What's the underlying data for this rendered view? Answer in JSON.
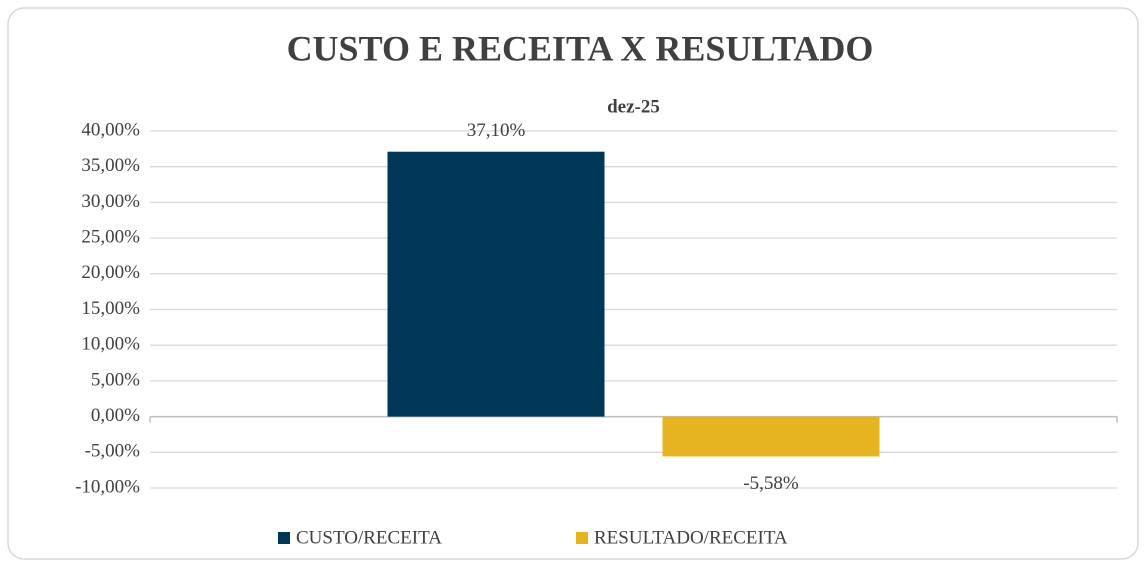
{
  "chart_data": {
    "type": "bar",
    "title": "CUSTO E RECEITA X RESULTADO",
    "categories": [
      "dez-25"
    ],
    "series": [
      {
        "name": "CUSTO/RECEITA",
        "color": "#003658",
        "values": [
          37.1
        ],
        "value_labels": [
          "37,10%"
        ]
      },
      {
        "name": "RESULTADO/RECEITA",
        "color": "#e6b420",
        "values": [
          -5.58
        ],
        "value_labels": [
          "-5,58%"
        ]
      }
    ],
    "ylim": [
      -10,
      40
    ],
    "yticks": [
      {
        "value": -10,
        "label": "-10,00%"
      },
      {
        "value": -5,
        "label": "-5,00%"
      },
      {
        "value": 0,
        "label": "0,00%"
      },
      {
        "value": 5,
        "label": "5,00%"
      },
      {
        "value": 10,
        "label": "10,00%"
      },
      {
        "value": 15,
        "label": "15,00%"
      },
      {
        "value": 20,
        "label": "20,00%"
      },
      {
        "value": 25,
        "label": "25,00%"
      },
      {
        "value": 30,
        "label": "30,00%"
      },
      {
        "value": 35,
        "label": "35,00%"
      },
      {
        "value": 40,
        "label": "40,00%"
      }
    ],
    "grid": true,
    "legend": "bottom"
  }
}
